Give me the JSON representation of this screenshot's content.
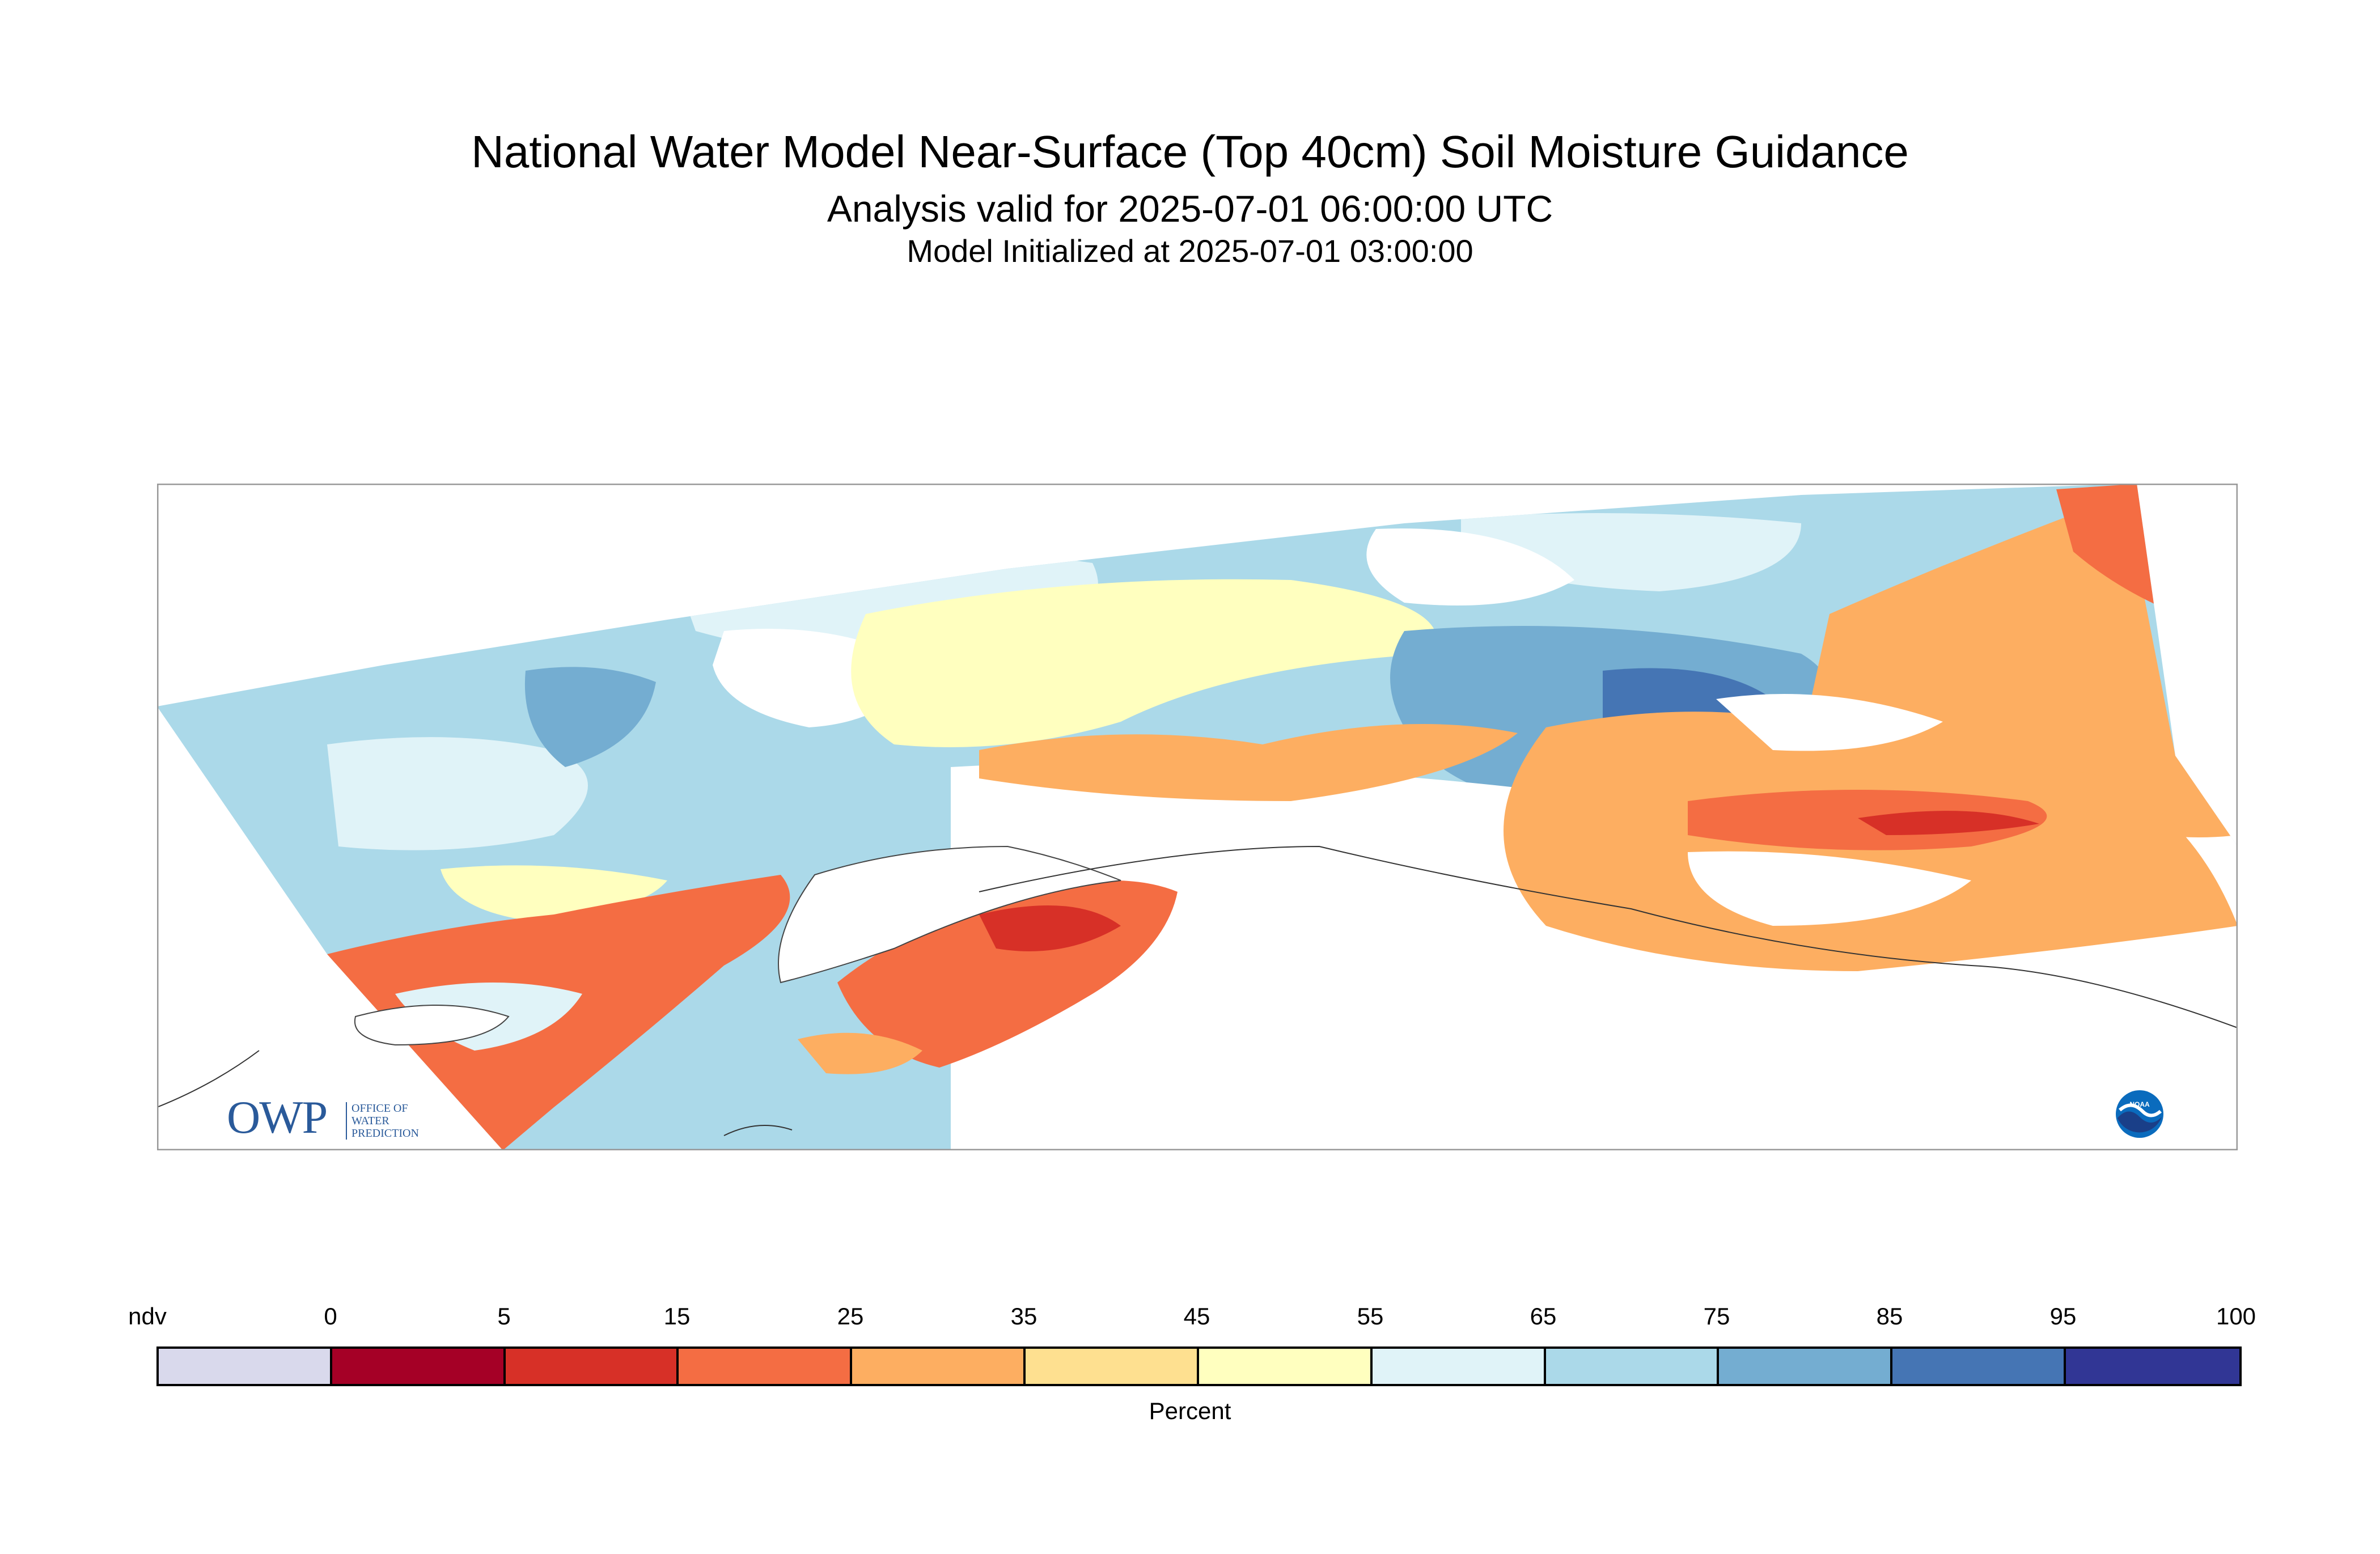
{
  "header": {
    "title": "National Water Model Near-Surface (Top 40cm) Soil Moisture Guidance",
    "subtitle": "Analysis valid for 2025-07-01 06:00:00 UTC",
    "init": "Model Initialized at 2025-07-01 03:00:00"
  },
  "logos": {
    "owp_text": "OWP",
    "owp_lines": [
      "OFFICE OF",
      "WATER",
      "PREDICTION"
    ],
    "noaa_text": "NOAA"
  },
  "legend": {
    "unit": "Percent",
    "labels": [
      "ndv",
      "0",
      "5",
      "15",
      "25",
      "35",
      "45",
      "55",
      "65",
      "75",
      "85",
      "95",
      "100"
    ],
    "bins": [
      {
        "range": "ndv",
        "color": "#d9d9ec"
      },
      {
        "range": "0-5",
        "color": "#a50026"
      },
      {
        "range": "5-15",
        "color": "#d73027"
      },
      {
        "range": "15-25",
        "color": "#f46d43"
      },
      {
        "range": "25-35",
        "color": "#fdae61"
      },
      {
        "range": "35-45",
        "color": "#fee090"
      },
      {
        "range": "45-55",
        "color": "#ffffbf"
      },
      {
        "range": "55-65",
        "color": "#e0f3f8"
      },
      {
        "range": "65-75",
        "color": "#abd9e9"
      },
      {
        "range": "75-85",
        "color": "#74add1"
      },
      {
        "range": "85-95",
        "color": "#4575b4"
      },
      {
        "range": "95-100",
        "color": "#313695"
      }
    ]
  }
}
